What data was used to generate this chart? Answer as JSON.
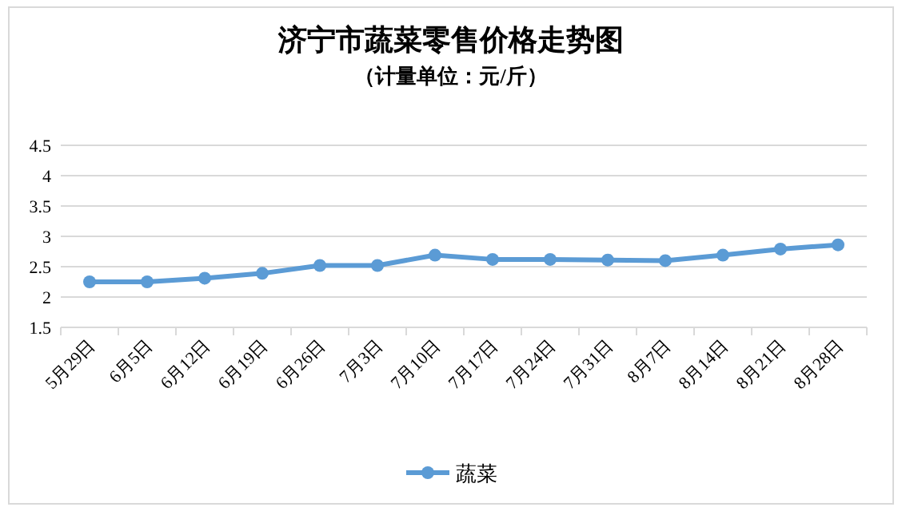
{
  "chart_data": {
    "type": "line",
    "title": "济宁市蔬菜零售价格走势图",
    "subtitle": "（计量单位：元/斤）",
    "categories": [
      "5月29日",
      "6月5日",
      "6月12日",
      "6月19日",
      "6月26日",
      "7月3日",
      "7月10日",
      "7月17日",
      "7月24日",
      "7月31日",
      "8月7日",
      "8月14日",
      "8月21日",
      "8月28日"
    ],
    "series": [
      {
        "name": "蔬菜",
        "color": "#5b9bd5",
        "values": [
          2.25,
          2.25,
          2.31,
          2.39,
          2.52,
          2.52,
          2.69,
          2.62,
          2.62,
          2.61,
          2.6,
          2.69,
          2.79,
          2.86
        ]
      }
    ],
    "ylim": [
      1.5,
      4.5
    ],
    "yticks": [
      1.5,
      2,
      2.5,
      3,
      3.5,
      4,
      4.5
    ],
    "grid": "y",
    "legend": "bottom",
    "marker": "circle",
    "line_style": "solid"
  }
}
